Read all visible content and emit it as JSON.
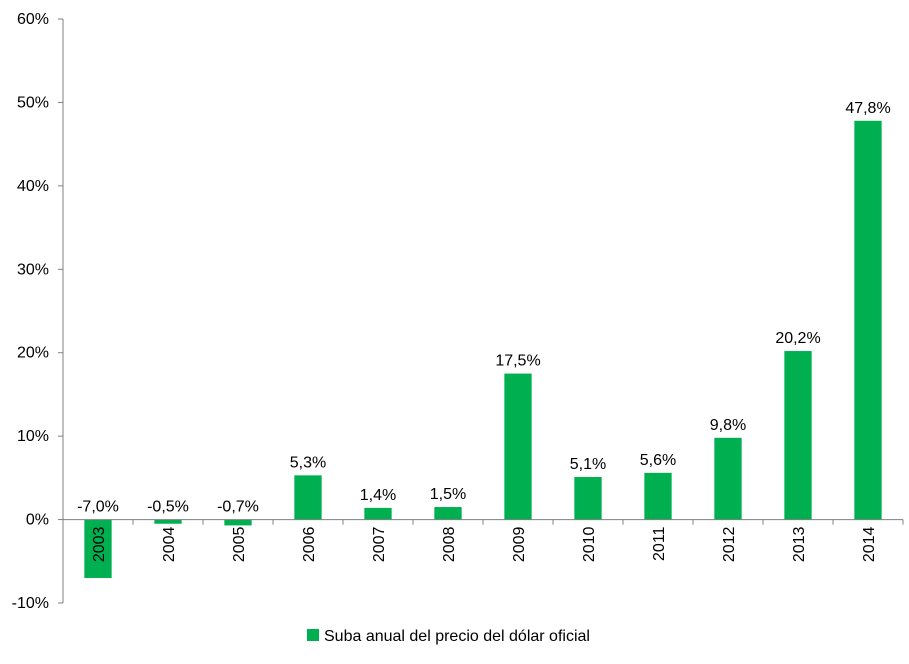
{
  "chart_data": {
    "type": "bar",
    "title": "",
    "xlabel": "",
    "ylabel": "",
    "categories": [
      "2003",
      "2004",
      "2005",
      "2006",
      "2007",
      "2008",
      "2009",
      "2010",
      "2011",
      "2012",
      "2013",
      "2014"
    ],
    "series": [
      {
        "name": "Suba anual del precio del dólar oficial",
        "values": [
          -7.0,
          -0.5,
          -0.7,
          5.3,
          1.4,
          1.5,
          17.5,
          5.1,
          5.6,
          9.8,
          20.2,
          47.8
        ],
        "data_labels": [
          "-7,0%",
          "-0,5%",
          "-0,7%",
          "5,3%",
          "1,4%",
          "1,5%",
          "17,5%",
          "5,1%",
          "5,6%",
          "9,8%",
          "20,2%",
          "47,8%"
        ],
        "color": "#00b050"
      }
    ],
    "ylim": [
      -10,
      60
    ],
    "yticks": [
      -10,
      0,
      10,
      20,
      30,
      40,
      50,
      60
    ],
    "ytick_labels": [
      "-10%",
      "0%",
      "10%",
      "20%",
      "30%",
      "40%",
      "50%",
      "60%"
    ],
    "grid": false,
    "legend_position": "bottom"
  },
  "legend": {
    "label": "Suba anual del precio del dólar oficial",
    "color": "#00b050"
  }
}
